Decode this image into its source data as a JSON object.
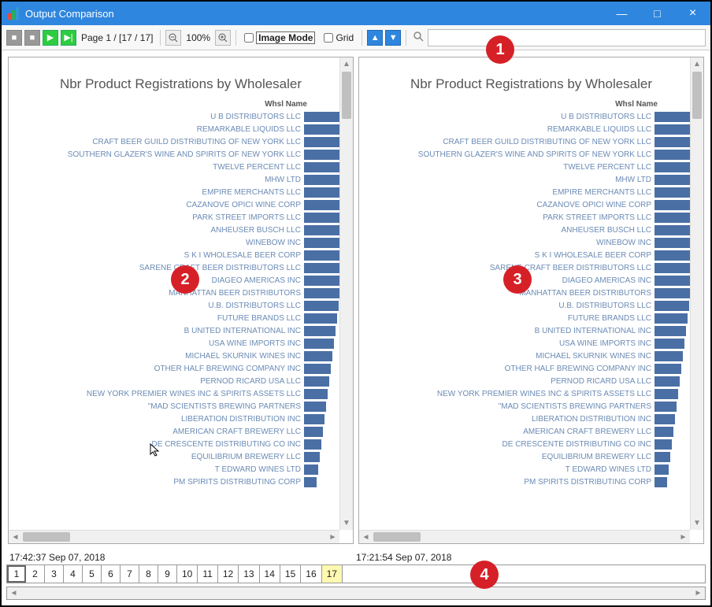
{
  "window": {
    "title": "Output Comparison",
    "titlebar_bg": "#2e86de",
    "min_label": "—",
    "max_label": "□",
    "close_label": "×"
  },
  "toolbar": {
    "page_label": "Page 1  /  [17 / 17]",
    "zoom_label": "100%",
    "image_mode_label": "Image Mode",
    "grid_label": "Grid",
    "search_placeholder": ""
  },
  "chart": {
    "title": "Nbr Product Registrations by Wholesaler",
    "header": "Whsl Name",
    "bar_color": "#4a6fa5",
    "label_color": "#6b8bb5",
    "rows": [
      {
        "label": "U B DISTRIBUTORS LLC",
        "value": 56
      },
      {
        "label": "REMARKABLE LIQUIDS LLC",
        "value": 56
      },
      {
        "label": "CRAFT BEER GUILD DISTRIBUTING OF NEW YORK LLC",
        "value": 56
      },
      {
        "label": "SOUTHERN GLAZER'S WINE AND SPIRITS OF NEW YORK LLC",
        "value": 56
      },
      {
        "label": "TWELVE PERCENT LLC",
        "value": 56
      },
      {
        "label": "MHW LTD",
        "value": 55
      },
      {
        "label": "EMPIRE MERCHANTS LLC",
        "value": 55
      },
      {
        "label": "CAZANOVE OPICI WINE CORP",
        "value": 55
      },
      {
        "label": "PARK STREET IMPORTS LLC",
        "value": 54
      },
      {
        "label": "ANHEUSER BUSCH LLC",
        "value": 53
      },
      {
        "label": "WINEBOW INC",
        "value": 52
      },
      {
        "label": "S K I WHOLESALE BEER CORP",
        "value": 51
      },
      {
        "label": "SARENE CRAFT BEER DISTRIBUTORS LLC",
        "value": 50
      },
      {
        "label": "DIAGEO AMERICAS INC",
        "value": 48
      },
      {
        "label": "MANHATTAN BEER DISTRIBUTORS",
        "value": 46
      },
      {
        "label": "U.B. DISTRIBUTORS LLC",
        "value": 44
      },
      {
        "label": "FUTURE BRANDS LLC",
        "value": 42
      },
      {
        "label": "B UNITED INTERNATIONAL INC",
        "value": 40
      },
      {
        "label": "USA WINE IMPORTS INC",
        "value": 38
      },
      {
        "label": "MICHAEL SKURNIK WINES INC",
        "value": 36
      },
      {
        "label": "OTHER HALF BREWING COMPANY INC",
        "value": 34
      },
      {
        "label": "PERNOD RICARD USA LLC",
        "value": 32
      },
      {
        "label": "NEW YORK PREMIER WINES INC & SPIRITS ASSETS LLC",
        "value": 30
      },
      {
        "label": "\"MAD SCIENTISTS BREWING PARTNERS",
        "value": 28
      },
      {
        "label": "LIBERATION DISTRIBUTION INC",
        "value": 26
      },
      {
        "label": "AMERICAN CRAFT BREWERY LLC",
        "value": 24
      },
      {
        "label": "DE CRESCENTE DISTRIBUTING CO INC",
        "value": 22
      },
      {
        "label": "EQUILIBRIUM BREWERY LLC",
        "value": 20
      },
      {
        "label": "T EDWARD WINES LTD",
        "value": 18
      },
      {
        "label": "PM SPIRITS DISTRIBUTING CORP",
        "value": 16
      }
    ]
  },
  "timestamps": {
    "left": "17:42:37  Sep 07, 2018",
    "right": "17:21:54  Sep 07, 2018"
  },
  "tabs": {
    "items": [
      "1",
      "2",
      "3",
      "4",
      "5",
      "6",
      "7",
      "8",
      "9",
      "10",
      "11",
      "12",
      "13",
      "14",
      "15",
      "16",
      "17"
    ],
    "selected": 0,
    "highlighted": 16
  },
  "badges": {
    "b1": "1",
    "b2": "2",
    "b3": "3",
    "b4": "4"
  }
}
